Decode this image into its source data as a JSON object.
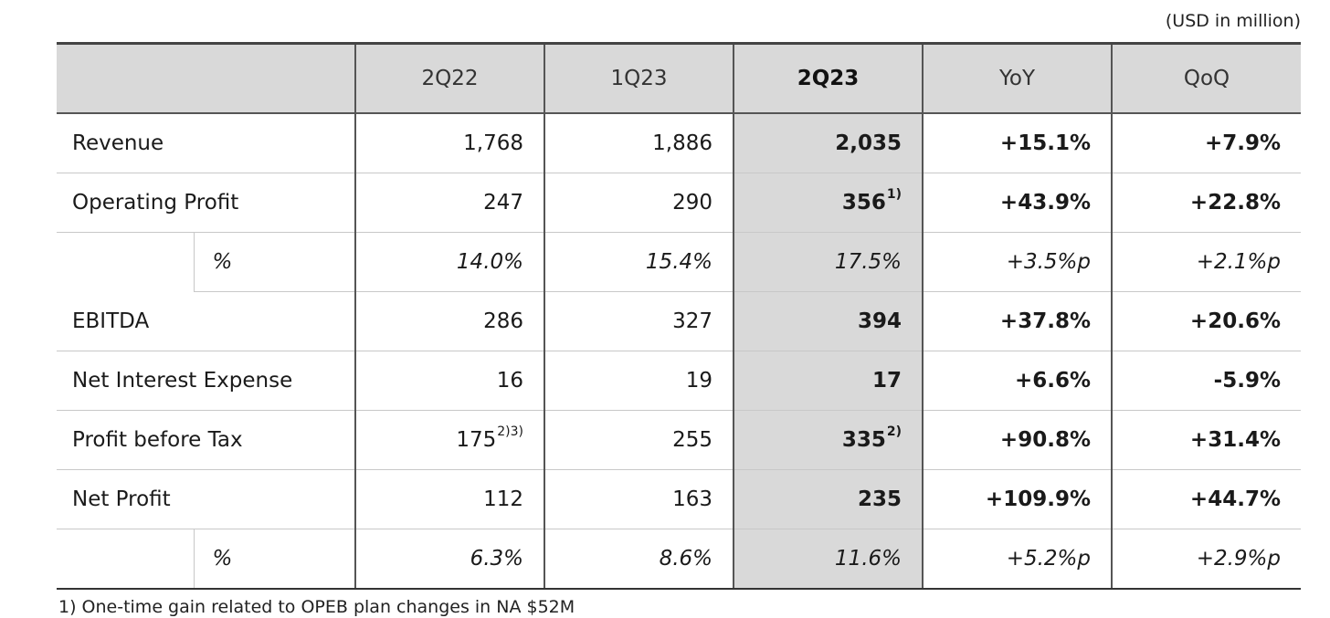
{
  "unit_note": "(USD in million)",
  "columns": [
    "2Q22",
    "1Q23",
    "2Q23",
    "YoY",
    "QoQ"
  ],
  "rows": {
    "revenue": {
      "label": "Revenue",
      "v": [
        "1,768",
        "1,886",
        "2,035",
        "+15.1%",
        "+7.9%"
      ]
    },
    "op": {
      "label": "Operating Profit",
      "v": [
        "247",
        "290",
        "356",
        "+43.9%",
        "+22.8%"
      ],
      "sup_2q23": "1)"
    },
    "op_pct": {
      "label": "%",
      "v": [
        "14.0%",
        "15.4%",
        "17.5%",
        "+3.5%p",
        "+2.1%p"
      ]
    },
    "ebitda": {
      "label": "EBITDA",
      "v": [
        "286",
        "327",
        "394",
        "+37.8%",
        "+20.6%"
      ]
    },
    "nie": {
      "label": "Net Interest Expense",
      "v": [
        "16",
        "19",
        "17",
        "+6.6%",
        "-5.9%"
      ]
    },
    "pbt": {
      "label": "Profit before Tax",
      "v": [
        "175",
        "255",
        "335",
        "+90.8%",
        "+31.4%"
      ],
      "sup_2q22": "2)3)",
      "sup_2q23": "2)"
    },
    "np": {
      "label": "Net Profit",
      "v": [
        "112",
        "163",
        "235",
        "+109.9%",
        "+44.7%"
      ]
    },
    "np_pct": {
      "label": "%",
      "v": [
        "6.3%",
        "8.6%",
        "11.6%",
        "+5.2%p",
        "+2.9%p"
      ]
    }
  },
  "footnote": "1) One-time gain related to OPEB plan changes in NA $52M",
  "colors": {
    "header_bg": "#d9d9d9",
    "highlight_col": "#d9d9d9"
  }
}
